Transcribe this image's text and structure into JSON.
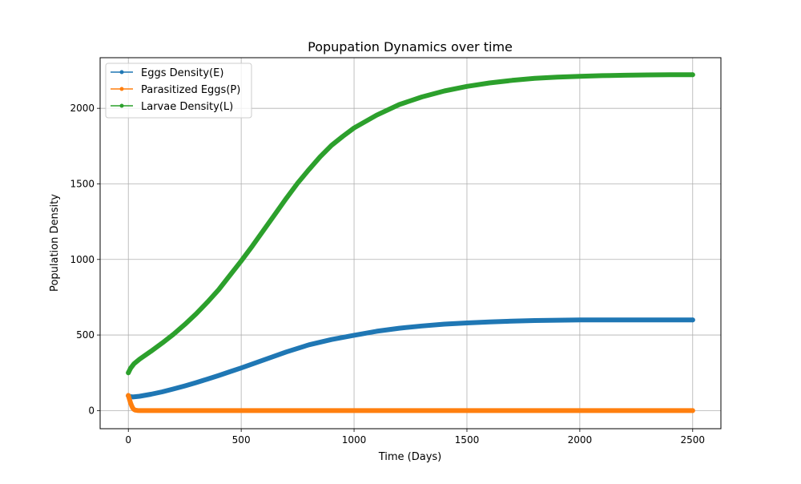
{
  "chart_data": {
    "type": "line",
    "title": "Popupation Dynamics over time",
    "xlabel": "Time (Days)",
    "ylabel": "Population Density",
    "xlim": [
      -125,
      2625
    ],
    "ylim": [
      -120,
      2335
    ],
    "xticks": [
      0,
      500,
      1000,
      1500,
      2000,
      2500
    ],
    "yticks": [
      0,
      500,
      1000,
      1500,
      2000
    ],
    "xtick_labels": [
      "0",
      "500",
      "1000",
      "1500",
      "2000",
      "2500"
    ],
    "ytick_labels": [
      "0",
      "500",
      "1000",
      "1500",
      "2000"
    ],
    "grid": true,
    "legend": "upper-left",
    "series": [
      {
        "name": "Eggs Density(E)",
        "color": "#1f77b4",
        "x": [
          0,
          10,
          20,
          50,
          100,
          150,
          200,
          250,
          300,
          350,
          400,
          450,
          500,
          600,
          700,
          800,
          900,
          1000,
          1100,
          1200,
          1300,
          1400,
          1500,
          1600,
          1700,
          1800,
          1900,
          2000,
          2200,
          2500
        ],
        "y": [
          98,
          92,
          90,
          95,
          108,
          124,
          143,
          163,
          185,
          208,
          232,
          257,
          282,
          335,
          388,
          435,
          470,
          498,
          525,
          545,
          560,
          572,
          580,
          587,
          592,
          596,
          598,
          600,
          600,
          600
        ]
      },
      {
        "name": "Parasitized Eggs(P)",
        "color": "#ff7f0e",
        "x": [
          0,
          5,
          10,
          15,
          20,
          25,
          30,
          40,
          50,
          100,
          500,
          1000,
          1500,
          2000,
          2500
        ],
        "y": [
          100,
          75,
          50,
          30,
          15,
          7,
          3,
          1,
          0,
          0,
          0,
          0,
          0,
          0,
          0
        ]
      },
      {
        "name": "Larvae Density(L)",
        "color": "#2ca02c",
        "x": [
          0,
          10,
          25,
          50,
          100,
          150,
          200,
          250,
          300,
          350,
          400,
          450,
          500,
          550,
          600,
          650,
          700,
          750,
          800,
          850,
          900,
          950,
          1000,
          1100,
          1200,
          1300,
          1400,
          1500,
          1600,
          1700,
          1800,
          1900,
          2000,
          2100,
          2200,
          2300,
          2400,
          2500
        ],
        "y": [
          250,
          280,
          310,
          340,
          392,
          447,
          505,
          570,
          640,
          717,
          800,
          895,
          990,
          1090,
          1195,
          1300,
          1405,
          1505,
          1595,
          1680,
          1755,
          1815,
          1870,
          1955,
          2025,
          2075,
          2115,
          2145,
          2168,
          2185,
          2198,
          2206,
          2212,
          2216,
          2219,
          2221,
          2222,
          2222
        ]
      }
    ]
  }
}
